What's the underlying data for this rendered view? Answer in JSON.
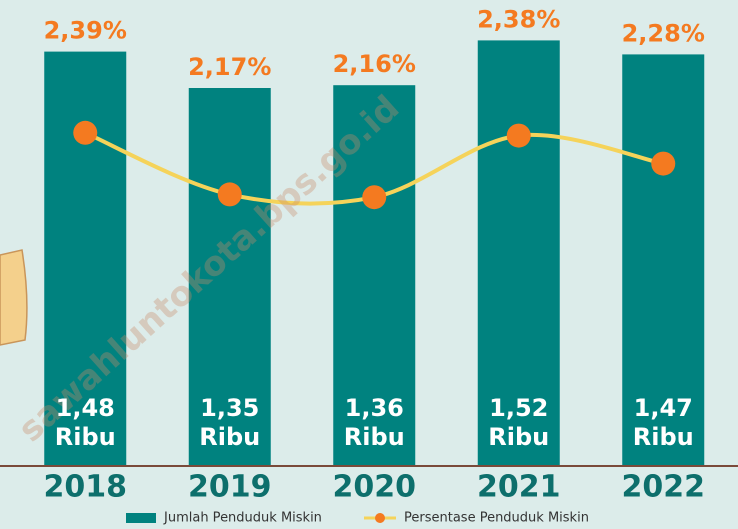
{
  "chart_data": {
    "type": "bar-line",
    "watermark": "sawahluntokota.bps.go.id",
    "categories": [
      "2018",
      "2019",
      "2020",
      "2021",
      "2022"
    ],
    "series": [
      {
        "name": "Jumlah Penduduk Miskin",
        "type": "bar",
        "color": "#00827f",
        "values": [
          1.48,
          1.35,
          1.36,
          1.52,
          1.47
        ],
        "value_labels": [
          "1,48 Ribu",
          "1,35 Ribu",
          "1,36 Ribu",
          "1,52 Ribu",
          "1,47 Ribu"
        ]
      },
      {
        "name": "Persentase Penduduk Miskin",
        "type": "line",
        "axis": "y2",
        "color": "#f47a20",
        "line_color": "#f5d35a",
        "values": [
          2.39,
          2.17,
          2.16,
          2.38,
          2.28
        ],
        "value_labels": [
          "2,39%",
          "2,17%",
          "2,16%",
          "2,38%",
          "2,28%"
        ]
      }
    ],
    "ylim": [
      0,
      1.6
    ],
    "y2lim": [
      1.2,
      2.8
    ]
  }
}
